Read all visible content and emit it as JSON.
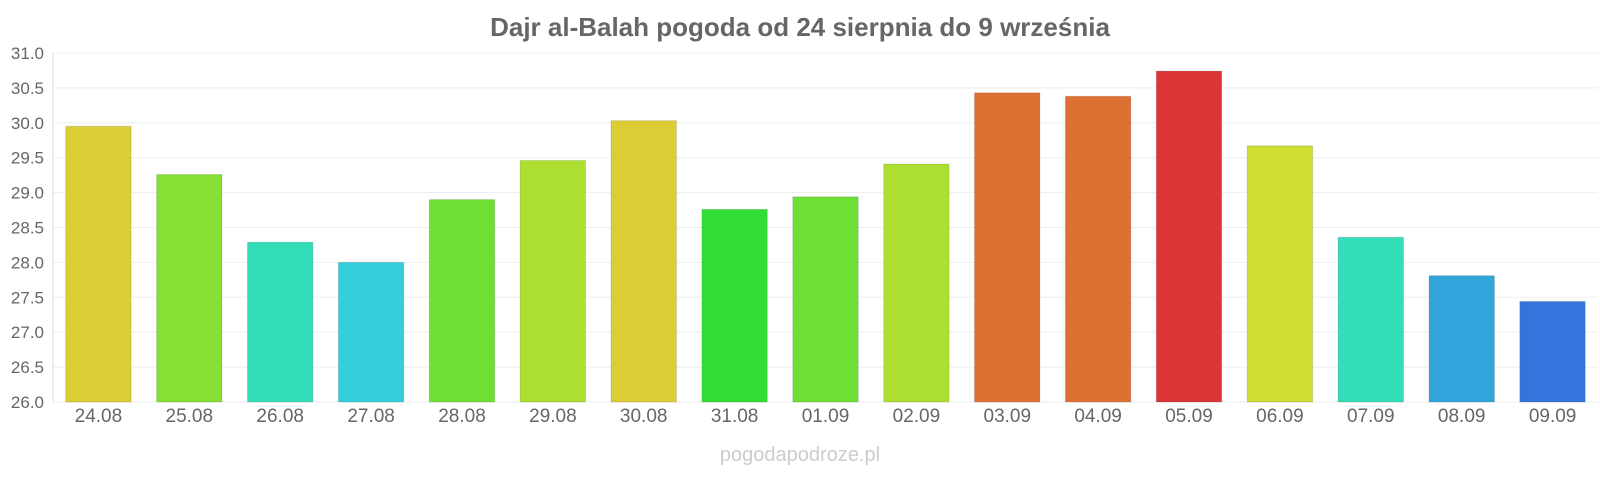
{
  "chart_data": {
    "type": "bar",
    "title": "Dajr al-Balah pogoda od 24 sierpnia do 9 września",
    "xlabel": "",
    "ylabel": "",
    "ylim": [
      26.0,
      31.0
    ],
    "yticks": [
      "31.0",
      "30.5",
      "30.0",
      "29.5",
      "29.0",
      "28.5",
      "28.0",
      "27.5",
      "27.0",
      "26.5",
      "26.0"
    ],
    "ytick_values": [
      31.0,
      30.5,
      30.0,
      29.5,
      29.0,
      28.5,
      28.0,
      27.5,
      27.0,
      26.5,
      26.0
    ],
    "grid": true,
    "legend": "none",
    "categories": [
      "24.08",
      "25.08",
      "26.08",
      "27.08",
      "28.08",
      "29.08",
      "30.08",
      "31.08",
      "01.09",
      "02.09",
      "03.09",
      "04.09",
      "05.09",
      "06.09",
      "07.09",
      "08.09",
      "09.09"
    ],
    "values": [
      29.95,
      29.26,
      28.29,
      28.0,
      28.9,
      29.46,
      30.03,
      28.76,
      28.94,
      29.41,
      30.43,
      30.38,
      30.74,
      29.67,
      28.36,
      27.81,
      27.44
    ],
    "colors": [
      "#dbcd33",
      "#86e033",
      "#33ddb8",
      "#33cfdc",
      "#6ee033",
      "#addf33",
      "#dbcd33",
      "#33dd38",
      "#6ee033",
      "#addf33",
      "#df7033",
      "#df7033",
      "#dc3535",
      "#cedc33",
      "#33ddb8",
      "#33a5dc",
      "#3375dc"
    ]
  },
  "footer": {
    "source": "pogodapodroze.pl"
  }
}
